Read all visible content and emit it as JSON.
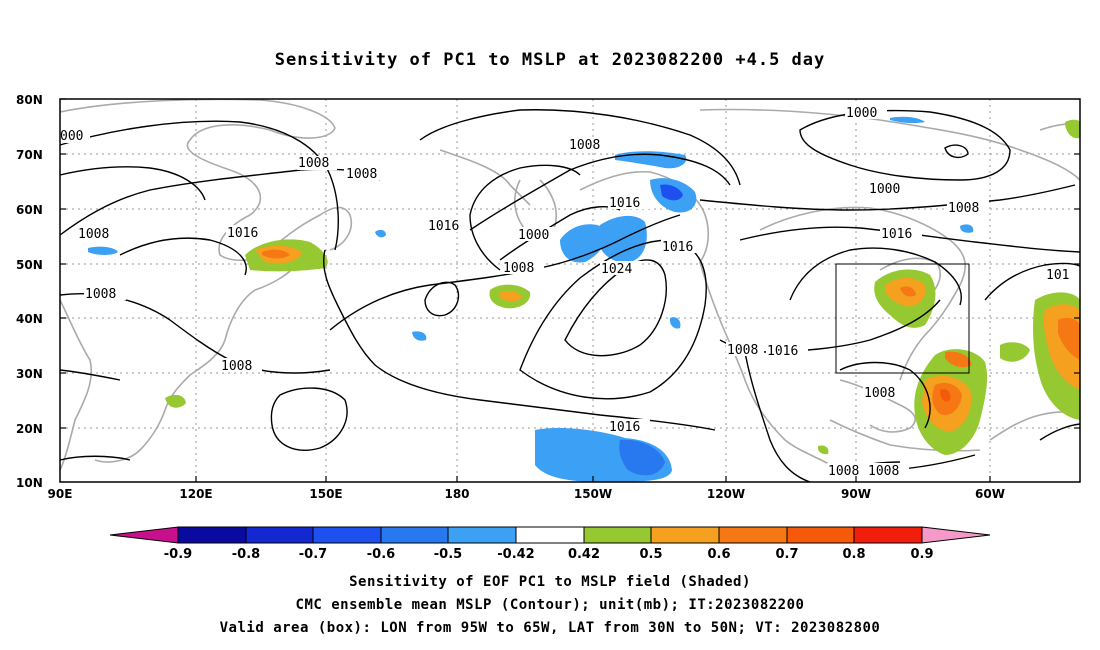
{
  "title": "Sensitivity of PC1 to MSLP at 2023082200 +4.5 day",
  "lat_labels": [
    "80N",
    "70N",
    "60N",
    "50N",
    "40N",
    "30N",
    "20N",
    "10N"
  ],
  "lon_labels": [
    "90E",
    "120E",
    "150E",
    "180",
    "150W",
    "120W",
    "90W",
    "60W"
  ],
  "colorbar": {
    "labels": [
      "-0.9",
      "-0.8",
      "-0.7",
      "-0.6",
      "-0.5",
      "-0.42",
      "0.42",
      "0.5",
      "0.6",
      "0.7",
      "0.8",
      "0.9"
    ],
    "colors": [
      "#c8108c",
      "#0a0aa0",
      "#1428d2",
      "#1e50f0",
      "#2878f0",
      "#3ca0f5",
      "#00c8f5",
      "#ffffff",
      "#96c832",
      "#f5a01e",
      "#f57814",
      "#f55a0a",
      "#f01e0a",
      "#fa0000",
      "#f59ac8"
    ]
  },
  "contour_labels": [
    "000",
    "1008",
    "1008",
    "1008",
    "1008",
    "1016",
    "1016",
    "1008",
    "1000",
    "1008",
    "1016",
    "1024",
    "1016",
    "1008",
    "1016",
    "1016",
    "1000",
    "1000",
    "1008",
    "1016",
    "101",
    "1008",
    "1008",
    "1008"
  ],
  "valid_area_box": {
    "lon_west": "95W",
    "lon_east": "65W",
    "lat_south": "30N",
    "lat_north": "50N"
  },
  "footer": {
    "line1": "Sensitivity of EOF PC1 to MSLP field (Shaded)",
    "line2": "CMC ensemble mean MSLP (Contour); unit(mb); IT:2023082200",
    "line3": "Valid area (box): LON from 95W to 65W, LAT from 30N to 50N; VT: 2023082800"
  }
}
